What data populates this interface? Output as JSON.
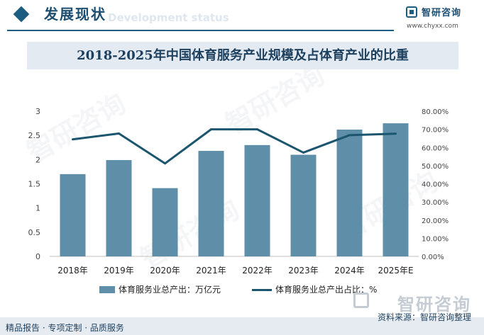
{
  "header": {
    "title": "发展现状",
    "ghost_text": "Development status",
    "brand_name": "智研咨询",
    "brand_url": "www.chyxx.com"
  },
  "chart_title": "2018-2025年中国体育服务产业规模及占体育产业的比重",
  "chart_data": {
    "type": "bar",
    "title": "2018-2025年中国体育服务产业规模及占体育产业的比重",
    "categories": [
      "2018年",
      "2019年",
      "2020年",
      "2021年",
      "2022年",
      "2023年",
      "2024年",
      "2025年E"
    ],
    "series": [
      {
        "name": "体育服务业总产出：万亿元",
        "type": "bar",
        "axis": "left",
        "color": "#5f8fa8",
        "values": [
          1.7,
          1.99,
          1.41,
          2.18,
          2.3,
          2.1,
          2.62,
          2.75
        ]
      },
      {
        "name": "体育服务业总产出占比：%",
        "type": "line",
        "axis": "right",
        "color": "#1b556e",
        "values": [
          64.5,
          67.7,
          51.2,
          70.0,
          70.0,
          57.2,
          66.8,
          67.6
        ]
      }
    ],
    "y_left": {
      "min": 0,
      "max": 3,
      "ticks": [
        "0",
        "0.5",
        "1",
        "1.5",
        "2",
        "2.5",
        "3"
      ]
    },
    "y_right": {
      "min": 0,
      "max": 80,
      "ticks": [
        "0.00%",
        "10.00%",
        "20.00%",
        "30.00%",
        "40.00%",
        "50.00%",
        "60.00%",
        "70.00%",
        "80.00%"
      ]
    },
    "grid": false,
    "legend_position": "bottom"
  },
  "legend": {
    "bar_label": "体育服务业总产出：万亿元",
    "line_label": "体育服务业总产出占比：%"
  },
  "footer": {
    "left": "精品报告 · 专项定制 · 品质服务",
    "source": "资料来源：智研咨询整理",
    "watermark": "智研咨询"
  }
}
